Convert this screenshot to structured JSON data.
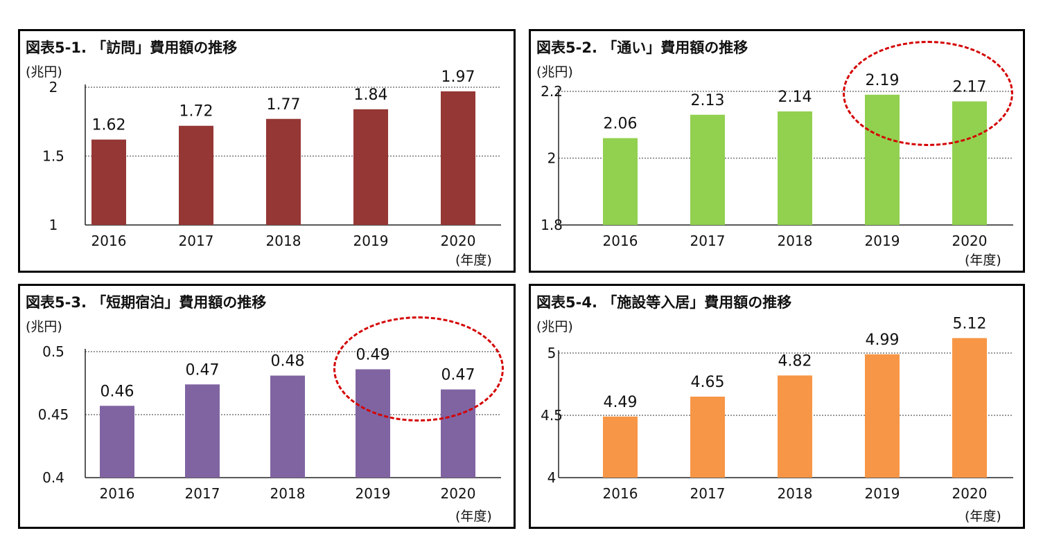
{
  "chart_data": [
    {
      "type": "bar",
      "title": "図表5-1. 「訪問」費用額の推移",
      "unit": "(兆円)",
      "xunit": "(年度)",
      "categories": [
        "2016",
        "2017",
        "2018",
        "2019",
        "2020"
      ],
      "values": [
        1.62,
        1.72,
        1.77,
        1.84,
        1.97
      ],
      "value_labels": [
        "1.62",
        "1.72",
        "1.77",
        "1.84",
        "1.97"
      ],
      "ylim": [
        1,
        2
      ],
      "yticks": [
        1,
        1.5,
        2
      ],
      "ytick_labels": [
        "1",
        "1.5",
        "2"
      ],
      "color": "#953735",
      "grid": true,
      "highlight_categories": []
    },
    {
      "type": "bar",
      "title": "図表5-2. 「通い」費用額の推移",
      "unit": "(兆円)",
      "xunit": "(年度)",
      "categories": [
        "2016",
        "2017",
        "2018",
        "2019",
        "2020"
      ],
      "values": [
        2.06,
        2.13,
        2.14,
        2.19,
        2.17
      ],
      "value_labels": [
        "2.06",
        "2.13",
        "2.14",
        "2.19",
        "2.17"
      ],
      "ylim": [
        1.8,
        2.2
      ],
      "yticks": [
        1.8,
        2,
        2.2
      ],
      "ytick_labels": [
        "1.8",
        "2",
        "2.2"
      ],
      "color": "#92d050",
      "grid": true,
      "highlight_categories": [
        "2019",
        "2020"
      ]
    },
    {
      "type": "bar",
      "title": "図表5-3. 「短期宿泊」費用額の推移",
      "unit": "(兆円)",
      "xunit": "(年度)",
      "categories": [
        "2016",
        "2017",
        "2018",
        "2019",
        "2020"
      ],
      "values": [
        0.457,
        0.474,
        0.481,
        0.486,
        0.47
      ],
      "value_labels": [
        "0.46",
        "0.47",
        "0.48",
        "0.49",
        "0.47"
      ],
      "ylim": [
        0.4,
        0.5
      ],
      "yticks": [
        0.4,
        0.45,
        0.5
      ],
      "ytick_labels": [
        "0.4",
        "0.45",
        "0.5"
      ],
      "color": "#8064a2",
      "grid": true,
      "highlight_categories": [
        "2019",
        "2020"
      ]
    },
    {
      "type": "bar",
      "title": "図表5-4. 「施設等入居」費用額の推移",
      "unit": "(兆円)",
      "xunit": "(年度)",
      "categories": [
        "2016",
        "2017",
        "2018",
        "2019",
        "2020"
      ],
      "values": [
        4.49,
        4.65,
        4.82,
        4.99,
        5.12
      ],
      "value_labels": [
        "4.49",
        "4.65",
        "4.82",
        "4.99",
        "5.12"
      ],
      "ylim": [
        4,
        5
      ],
      "yticks": [
        4,
        4.5,
        5
      ],
      "ytick_labels": [
        "4",
        "4.5",
        "5"
      ],
      "color": "#f79646",
      "grid": true,
      "highlight_categories": []
    }
  ]
}
